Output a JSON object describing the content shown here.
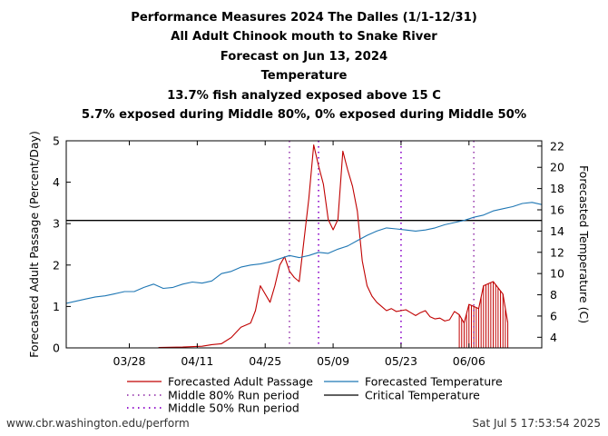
{
  "titles": [
    "Performance Measures 2024 The Dalles (1/1-12/31)",
    "All Adult Chinook mouth to Snake River",
    "Forecast on Jun 13, 2024",
    "Temperature",
    "13.7% fish analyzed exposed above 15 C",
    "5.7% exposed during Middle 80%, 0% exposed during Middle 50%"
  ],
  "footer": {
    "left": "www.cbr.washington.edu/perform",
    "right": "Sat Jul  5 17:53:54 2025"
  },
  "colors": {
    "passage": "#c00000",
    "temperature": "#1f77b4",
    "middle80": "#9b3fb0",
    "middle50": "#8a00c8",
    "critical": "#000000"
  },
  "chart_data": {
    "type": "line",
    "xlabel": "",
    "ylabel": "Forecasted Adult Passage (Percent/Day)",
    "ylabel_right": "Forecasted Temperature (C)",
    "xlim": [
      "2024-03-15",
      "2024-06-21"
    ],
    "ylim": [
      0,
      5
    ],
    "ylim_right": [
      3,
      22.5
    ],
    "y_ticks": [
      0,
      1,
      2,
      3,
      4,
      5
    ],
    "y_right_ticks": [
      4,
      6,
      8,
      10,
      12,
      14,
      16,
      18,
      20,
      22
    ],
    "x_ticks": [
      {
        "date": "2024-03-28",
        "label": "03/28"
      },
      {
        "date": "2024-04-11",
        "label": "04/11"
      },
      {
        "date": "2024-04-25",
        "label": "04/25"
      },
      {
        "date": "2024-05-09",
        "label": "05/09"
      },
      {
        "date": "2024-05-23",
        "label": "05/23"
      },
      {
        "date": "2024-06-06",
        "label": "06/06"
      }
    ],
    "critical_temperature": 15,
    "middle80_period": [
      "2024-04-30",
      "2024-06-07"
    ],
    "middle50_period": [
      "2024-05-06",
      "2024-05-23"
    ],
    "legend": {
      "passage": "Forecasted Adult Passage",
      "temperature": "Forecasted Temperature",
      "middle80": "Middle 80% Run period",
      "critical": "Critical Temperature",
      "middle50": "Middle 50% Run period"
    },
    "forecast_hatch_start": "2024-06-04",
    "series": [
      {
        "name": "Forecasted Adult Passage",
        "axis": "left",
        "x": [
          "2024-04-03",
          "2024-04-08",
          "2024-04-12",
          "2024-04-14",
          "2024-04-16",
          "2024-04-18",
          "2024-04-20",
          "2024-04-22",
          "2024-04-23",
          "2024-04-24",
          "2024-04-26",
          "2024-04-27",
          "2024-04-28",
          "2024-04-29",
          "2024-04-30",
          "2024-05-01",
          "2024-05-02",
          "2024-05-04",
          "2024-05-05",
          "2024-05-06",
          "2024-05-07",
          "2024-05-08",
          "2024-05-09",
          "2024-05-10",
          "2024-05-11",
          "2024-05-12",
          "2024-05-13",
          "2024-05-14",
          "2024-05-15",
          "2024-05-16",
          "2024-05-17",
          "2024-05-18",
          "2024-05-19",
          "2024-05-20",
          "2024-05-21",
          "2024-05-22",
          "2024-05-23",
          "2024-05-24",
          "2024-05-25",
          "2024-05-26",
          "2024-05-27",
          "2024-05-28",
          "2024-05-29",
          "2024-05-30",
          "2024-05-31",
          "2024-06-01",
          "2024-06-02",
          "2024-06-03",
          "2024-06-04",
          "2024-06-05",
          "2024-06-06",
          "2024-06-07",
          "2024-06-08",
          "2024-06-09",
          "2024-06-10",
          "2024-06-11",
          "2024-06-12",
          "2024-06-13",
          "2024-06-14"
        ],
        "values": [
          0.01,
          0.02,
          0.04,
          0.08,
          0.1,
          0.25,
          0.5,
          0.6,
          0.9,
          1.5,
          1.1,
          1.5,
          2.0,
          2.2,
          1.85,
          1.7,
          1.6,
          3.6,
          4.9,
          4.4,
          3.95,
          3.1,
          2.85,
          3.1,
          4.75,
          4.3,
          3.9,
          3.3,
          2.1,
          1.5,
          1.25,
          1.1,
          1.0,
          0.9,
          0.95,
          0.88,
          0.9,
          0.92,
          0.85,
          0.78,
          0.85,
          0.9,
          0.75,
          0.7,
          0.72,
          0.65,
          0.68,
          0.88,
          0.8,
          0.6,
          1.05,
          1.0,
          0.95,
          1.5,
          1.55,
          1.6,
          1.45,
          1.3,
          0.6
        ]
      },
      {
        "name": "Forecasted Temperature",
        "axis": "right",
        "x": [
          "2024-03-15",
          "2024-03-17",
          "2024-03-19",
          "2024-03-21",
          "2024-03-23",
          "2024-03-25",
          "2024-03-27",
          "2024-03-29",
          "2024-03-31",
          "2024-04-02",
          "2024-04-04",
          "2024-04-06",
          "2024-04-08",
          "2024-04-10",
          "2024-04-12",
          "2024-04-14",
          "2024-04-16",
          "2024-04-18",
          "2024-04-20",
          "2024-04-22",
          "2024-04-24",
          "2024-04-26",
          "2024-04-28",
          "2024-04-30",
          "2024-05-02",
          "2024-05-04",
          "2024-05-06",
          "2024-05-08",
          "2024-05-10",
          "2024-05-12",
          "2024-05-14",
          "2024-05-16",
          "2024-05-18",
          "2024-05-20",
          "2024-05-22",
          "2024-05-24",
          "2024-05-26",
          "2024-05-28",
          "2024-05-30",
          "2024-06-01",
          "2024-06-03",
          "2024-06-05",
          "2024-06-07",
          "2024-06-09",
          "2024-06-11",
          "2024-06-13",
          "2024-06-15",
          "2024-06-17",
          "2024-06-19",
          "2024-06-21"
        ],
        "values": [
          7.2,
          7.4,
          7.6,
          7.8,
          7.9,
          8.1,
          8.3,
          8.3,
          8.7,
          9.0,
          8.6,
          8.7,
          9.0,
          9.2,
          9.1,
          9.3,
          10.0,
          10.2,
          10.6,
          10.8,
          10.9,
          11.1,
          11.4,
          11.7,
          11.5,
          11.7,
          12.0,
          11.9,
          12.3,
          12.6,
          13.1,
          13.6,
          14.0,
          14.3,
          14.2,
          14.1,
          14.0,
          14.1,
          14.3,
          14.6,
          14.8,
          15.0,
          15.3,
          15.5,
          15.9,
          16.1,
          16.3,
          16.6,
          16.7,
          16.5
        ]
      }
    ]
  }
}
